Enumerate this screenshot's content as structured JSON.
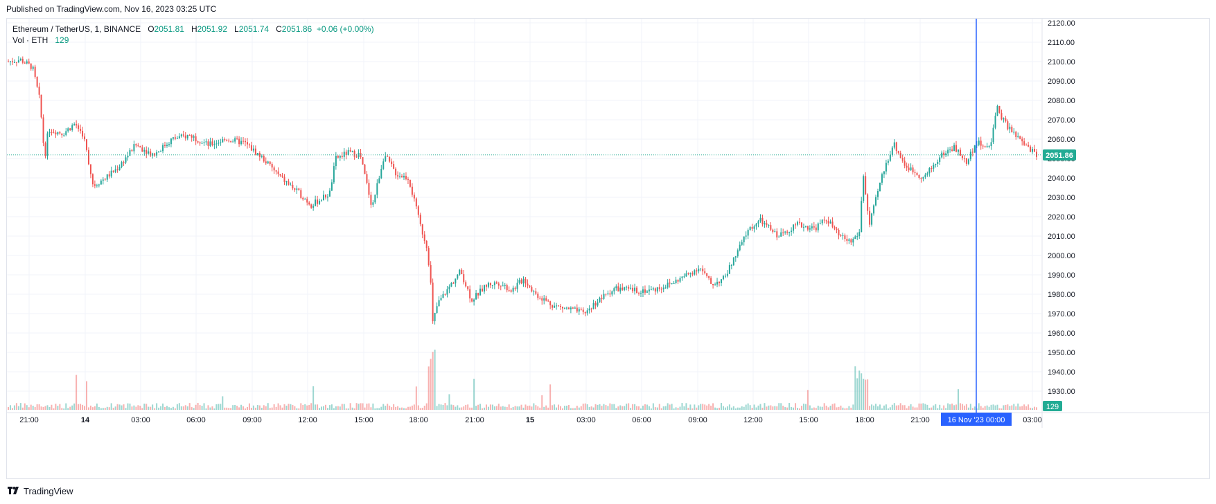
{
  "header": {
    "published": "Published on TradingView.com, Nov 16, 2023 03:25 UTC"
  },
  "legend": {
    "symbol": "Ethereum / TetherUS, 1, BINANCE",
    "o_label": "O",
    "o_value": "2051.81",
    "h_label": "H",
    "h_value": "2051.92",
    "l_label": "L",
    "l_value": "2051.74",
    "c_label": "C",
    "c_value": "2051.86",
    "change": "+0.06 (+0.00%)",
    "vol_label": "Vol · ETH",
    "vol_value": "129"
  },
  "footer": {
    "brand": "TradingView",
    "logo_icon": "tradingview-logo-icon"
  },
  "colors": {
    "up": "#26a69a",
    "down": "#ef5350",
    "last_price_badge": "#22ab94",
    "crosshair": "#2962ff",
    "grid": "#f0f3fa",
    "axis_text": "#131722"
  },
  "chart_data": {
    "type": "candlestick",
    "symbol": "ETHUSDT",
    "interval": "1 minute",
    "x_axis_ticks": [
      "21:00",
      "14",
      "03:00",
      "06:00",
      "09:00",
      "12:00",
      "15:00",
      "18:00",
      "21:00",
      "15",
      "03:00",
      "06:00",
      "09:00",
      "12:00",
      "15:00",
      "18:00",
      "21:00",
      "16 Nov '23 00:00",
      "03:00"
    ],
    "y_axis_ticks": [
      "1930.00",
      "1940.00",
      "1950.00",
      "1960.00",
      "1970.00",
      "1980.00",
      "1990.00",
      "2000.00",
      "2010.00",
      "2020.00",
      "2030.00",
      "2040.00",
      "2050.00",
      "2060.00",
      "2070.00",
      "2080.00",
      "2090.00",
      "2100.00",
      "2110.00",
      "2120.00"
    ],
    "ylim": [
      1925,
      2123
    ],
    "last_price": "2051.86",
    "last_volume": "129",
    "crosshair_label": "16 Nov '23   00:00",
    "price_path": [
      {
        "t": 0.0,
        "p": 2100
      },
      {
        "t": 1.0,
        "p": 2101
      },
      {
        "t": 2.0,
        "p": 2097
      },
      {
        "t": 2.6,
        "p": 2080
      },
      {
        "t": 3.0,
        "p": 2050
      },
      {
        "t": 3.3,
        "p": 2065
      },
      {
        "t": 4.5,
        "p": 2063
      },
      {
        "t": 5.5,
        "p": 2068
      },
      {
        "t": 6.2,
        "p": 2062
      },
      {
        "t": 7.0,
        "p": 2036
      },
      {
        "t": 8.0,
        "p": 2040
      },
      {
        "t": 9.0,
        "p": 2045
      },
      {
        "t": 10.5,
        "p": 2057
      },
      {
        "t": 12.0,
        "p": 2052
      },
      {
        "t": 13.5,
        "p": 2060
      },
      {
        "t": 15.0,
        "p": 2062
      },
      {
        "t": 16.5,
        "p": 2057
      },
      {
        "t": 18.0,
        "p": 2060
      },
      {
        "t": 19.5,
        "p": 2058
      },
      {
        "t": 21.0,
        "p": 2050
      },
      {
        "t": 22.5,
        "p": 2040
      },
      {
        "t": 24.0,
        "p": 2032
      },
      {
        "t": 25.0,
        "p": 2026
      },
      {
        "t": 26.5,
        "p": 2032
      },
      {
        "t": 27.0,
        "p": 2050
      },
      {
        "t": 28.0,
        "p": 2053
      },
      {
        "t": 29.0,
        "p": 2052
      },
      {
        "t": 30.0,
        "p": 2025
      },
      {
        "t": 31.0,
        "p": 2052
      },
      {
        "t": 32.0,
        "p": 2042
      },
      {
        "t": 33.0,
        "p": 2040
      },
      {
        "t": 34.0,
        "p": 2015
      },
      {
        "t": 34.5,
        "p": 2005
      },
      {
        "t": 34.8,
        "p": 1990
      },
      {
        "t": 35.0,
        "p": 1965
      },
      {
        "t": 35.4,
        "p": 1975
      },
      {
        "t": 36.5,
        "p": 1985
      },
      {
        "t": 37.3,
        "p": 1992
      },
      {
        "t": 38.2,
        "p": 1977
      },
      {
        "t": 39.5,
        "p": 1985
      },
      {
        "t": 40.5,
        "p": 1986
      },
      {
        "t": 41.5,
        "p": 1982
      },
      {
        "t": 42.5,
        "p": 1988
      },
      {
        "t": 43.5,
        "p": 1980
      },
      {
        "t": 45.0,
        "p": 1974
      },
      {
        "t": 46.5,
        "p": 1972
      },
      {
        "t": 47.5,
        "p": 1970
      },
      {
        "t": 48.5,
        "p": 1976
      },
      {
        "t": 50.0,
        "p": 1983
      },
      {
        "t": 51.5,
        "p": 1982
      },
      {
        "t": 53.0,
        "p": 1982
      },
      {
        "t": 54.5,
        "p": 1985
      },
      {
        "t": 56.0,
        "p": 1990
      },
      {
        "t": 57.0,
        "p": 1994
      },
      {
        "t": 58.0,
        "p": 1985
      },
      {
        "t": 59.0,
        "p": 1988
      },
      {
        "t": 60.0,
        "p": 2000
      },
      {
        "t": 61.0,
        "p": 2013
      },
      {
        "t": 62.0,
        "p": 2018
      },
      {
        "t": 63.5,
        "p": 2010
      },
      {
        "t": 65.0,
        "p": 2016
      },
      {
        "t": 66.5,
        "p": 2014
      },
      {
        "t": 67.5,
        "p": 2019
      },
      {
        "t": 68.5,
        "p": 2010
      },
      {
        "t": 69.5,
        "p": 2007
      },
      {
        "t": 70.2,
        "p": 2012
      },
      {
        "t": 70.5,
        "p": 2043
      },
      {
        "t": 71.0,
        "p": 2015
      },
      {
        "t": 72.0,
        "p": 2040
      },
      {
        "t": 73.0,
        "p": 2058
      },
      {
        "t": 74.0,
        "p": 2046
      },
      {
        "t": 75.5,
        "p": 2040
      },
      {
        "t": 77.0,
        "p": 2052
      },
      {
        "t": 78.0,
        "p": 2056
      },
      {
        "t": 79.0,
        "p": 2048
      },
      {
        "t": 79.8,
        "p": 2058
      },
      {
        "t": 80.5,
        "p": 2057
      },
      {
        "t": 81.0,
        "p": 2055
      },
      {
        "t": 81.5,
        "p": 2078
      },
      {
        "t": 82.0,
        "p": 2070
      },
      {
        "t": 83.0,
        "p": 2062
      },
      {
        "t": 84.0,
        "p": 2056
      },
      {
        "t": 84.8,
        "p": 2052
      }
    ]
  }
}
